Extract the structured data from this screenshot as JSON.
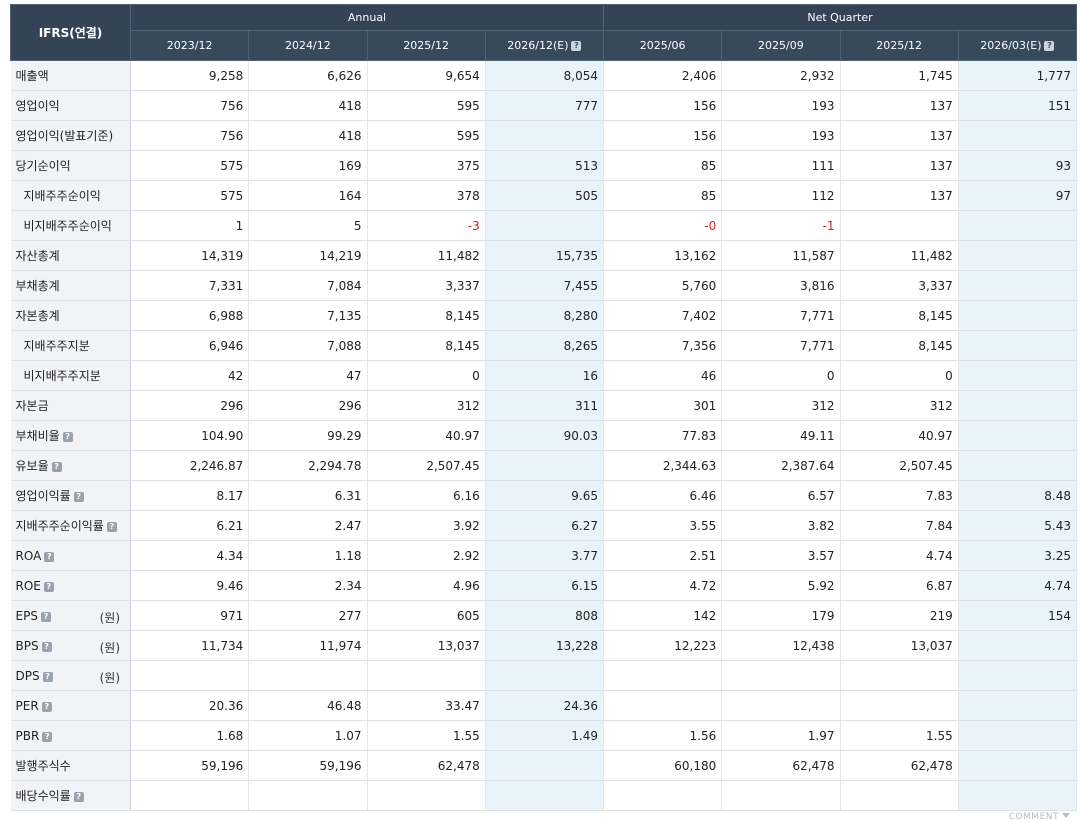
{
  "header": {
    "corner": "IFRS(연결)",
    "annual": "Annual",
    "quarter": "Net Quarter",
    "columns": [
      "2023/12",
      "2024/12",
      "2025/12",
      "2026/12(E)",
      "2025/06",
      "2025/09",
      "2025/12",
      "2026/03(E)"
    ],
    "help_glyph": "?"
  },
  "rows": [
    {
      "label": "매출액",
      "sub": false,
      "help": false,
      "unit": "",
      "values": [
        "9,258",
        "6,626",
        "9,654",
        "8,054",
        "2,406",
        "2,932",
        "1,745",
        "1,777"
      ]
    },
    {
      "label": "영업이익",
      "sub": false,
      "help": false,
      "unit": "",
      "values": [
        "756",
        "418",
        "595",
        "777",
        "156",
        "193",
        "137",
        "151"
      ]
    },
    {
      "label": "영업이익(발표기준)",
      "sub": false,
      "help": false,
      "unit": "",
      "values": [
        "756",
        "418",
        "595",
        "",
        "156",
        "193",
        "137",
        ""
      ]
    },
    {
      "label": "당기순이익",
      "sub": false,
      "help": false,
      "unit": "",
      "values": [
        "575",
        "169",
        "375",
        "513",
        "85",
        "111",
        "137",
        "93"
      ]
    },
    {
      "label": "지배주주순이익",
      "sub": true,
      "help": false,
      "unit": "",
      "values": [
        "575",
        "164",
        "378",
        "505",
        "85",
        "112",
        "137",
        "97"
      ]
    },
    {
      "label": "비지배주주순이익",
      "sub": true,
      "help": false,
      "unit": "",
      "values": [
        "1",
        "5",
        "-3",
        "",
        "-0",
        "-1",
        "",
        ""
      ]
    },
    {
      "label": "자산총계",
      "sub": false,
      "help": false,
      "unit": "",
      "values": [
        "14,319",
        "14,219",
        "11,482",
        "15,735",
        "13,162",
        "11,587",
        "11,482",
        ""
      ]
    },
    {
      "label": "부채총계",
      "sub": false,
      "help": false,
      "unit": "",
      "values": [
        "7,331",
        "7,084",
        "3,337",
        "7,455",
        "5,760",
        "3,816",
        "3,337",
        ""
      ]
    },
    {
      "label": "자본총계",
      "sub": false,
      "help": false,
      "unit": "",
      "values": [
        "6,988",
        "7,135",
        "8,145",
        "8,280",
        "7,402",
        "7,771",
        "8,145",
        ""
      ]
    },
    {
      "label": "지배주주지분",
      "sub": true,
      "help": false,
      "unit": "",
      "values": [
        "6,946",
        "7,088",
        "8,145",
        "8,265",
        "7,356",
        "7,771",
        "8,145",
        ""
      ]
    },
    {
      "label": "비지배주주지분",
      "sub": true,
      "help": false,
      "unit": "",
      "values": [
        "42",
        "47",
        "0",
        "16",
        "46",
        "0",
        "0",
        ""
      ]
    },
    {
      "label": "자본금",
      "sub": false,
      "help": false,
      "unit": "",
      "values": [
        "296",
        "296",
        "312",
        "311",
        "301",
        "312",
        "312",
        ""
      ]
    },
    {
      "label": "부채비율",
      "sub": false,
      "help": true,
      "unit": "",
      "values": [
        "104.90",
        "99.29",
        "40.97",
        "90.03",
        "77.83",
        "49.11",
        "40.97",
        ""
      ]
    },
    {
      "label": "유보율",
      "sub": false,
      "help": true,
      "unit": "",
      "values": [
        "2,246.87",
        "2,294.78",
        "2,507.45",
        "",
        "2,344.63",
        "2,387.64",
        "2,507.45",
        ""
      ]
    },
    {
      "label": "영업이익률",
      "sub": false,
      "help": true,
      "unit": "",
      "values": [
        "8.17",
        "6.31",
        "6.16",
        "9.65",
        "6.46",
        "6.57",
        "7.83",
        "8.48"
      ]
    },
    {
      "label": "지배주주순이익률",
      "sub": false,
      "help": true,
      "unit": "",
      "values": [
        "6.21",
        "2.47",
        "3.92",
        "6.27",
        "3.55",
        "3.82",
        "7.84",
        "5.43"
      ]
    },
    {
      "label": "ROA",
      "sub": false,
      "help": true,
      "unit": "",
      "values": [
        "4.34",
        "1.18",
        "2.92",
        "3.77",
        "2.51",
        "3.57",
        "4.74",
        "3.25"
      ]
    },
    {
      "label": "ROE",
      "sub": false,
      "help": true,
      "unit": "",
      "values": [
        "9.46",
        "2.34",
        "4.96",
        "6.15",
        "4.72",
        "5.92",
        "6.87",
        "4.74"
      ]
    },
    {
      "label": "EPS",
      "sub": false,
      "help": true,
      "unit": "(원)",
      "values": [
        "971",
        "277",
        "605",
        "808",
        "142",
        "179",
        "219",
        "154"
      ]
    },
    {
      "label": "BPS",
      "sub": false,
      "help": true,
      "unit": "(원)",
      "values": [
        "11,734",
        "11,974",
        "13,037",
        "13,228",
        "12,223",
        "12,438",
        "13,037",
        ""
      ]
    },
    {
      "label": "DPS",
      "sub": false,
      "help": true,
      "unit": "(원)",
      "values": [
        "",
        "",
        "",
        "",
        "",
        "",
        "",
        ""
      ]
    },
    {
      "label": "PER",
      "sub": false,
      "help": true,
      "unit": "",
      "values": [
        "20.36",
        "46.48",
        "33.47",
        "24.36",
        "",
        "",
        "",
        ""
      ]
    },
    {
      "label": "PBR",
      "sub": false,
      "help": true,
      "unit": "",
      "values": [
        "1.68",
        "1.07",
        "1.55",
        "1.49",
        "1.56",
        "1.97",
        "1.55",
        ""
      ]
    },
    {
      "label": "발행주식수",
      "sub": false,
      "help": false,
      "unit": "",
      "values": [
        "59,196",
        "59,196",
        "62,478",
        "",
        "60,180",
        "62,478",
        "62,478",
        ""
      ]
    },
    {
      "label": "배당수익률",
      "sub": false,
      "help": true,
      "unit": "",
      "values": [
        "",
        "",
        "",
        "",
        "",
        "",
        "",
        ""
      ]
    }
  ],
  "footer": {
    "comment": "COMMENT"
  }
}
